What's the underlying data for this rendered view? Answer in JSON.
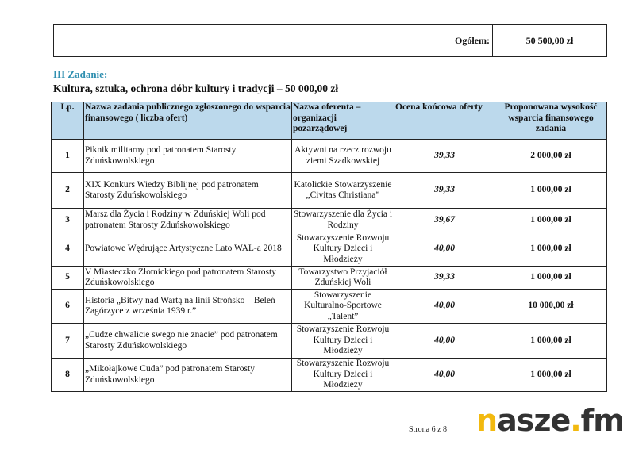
{
  "summary": {
    "label": "Ogółem:",
    "value": "50 500,00 zł"
  },
  "section": {
    "heading": "III Zadanie:",
    "subtitle": "Kultura, sztuka, ochrona dóbr kultury i tradycji – 50 000,00 zł"
  },
  "table": {
    "headers": [
      "Lp.",
      "Nazwa zadania publicznego zgłoszonego do wsparcia finansowego ( liczba ofert)",
      "Nazwa oferenta – organizacji pozarządowej",
      "Ocena końcowa oferty",
      "Proponowana wysokość wsparcia finansowego zadania"
    ],
    "rows": [
      {
        "lp": "1",
        "name": "Piknik militarny pod patronatem Starosty Zduńskowolskiego",
        "org": "Aktywni na rzecz rozwoju ziemi Szadkowskiej",
        "score": "39,33",
        "amount": "2 000,00 zł"
      },
      {
        "lp": "2",
        "name": "XIX Konkurs Wiedzy Biblijnej pod patronatem Starosty Zduńskowolskiego",
        "org": "Katolickie Stowarzyszenie „Civitas Christiana”",
        "score": "39,33",
        "amount": "1 000,00 zł"
      },
      {
        "lp": "3",
        "name": "Marsz dla Życia i Rodziny w Zduńskiej Woli pod patronatem Starosty Zduńskowolskiego",
        "org": "Stowarzyszenie dla Życia i Rodziny",
        "score": "39,67",
        "amount": "1 000,00 zł"
      },
      {
        "lp": "4",
        "name": "Powiatowe Wędrujące Artystyczne Lato WAL-a 2018",
        "org": "Stowarzyszenie Rozwoju Kultury Dzieci i Młodzieży",
        "score": "40,00",
        "amount": "1 000,00 zł"
      },
      {
        "lp": "5",
        "name": "V Miasteczko Złotnickiego pod patronatem Starosty Zduńskowolskiego",
        "org": "Towarzystwo Przyjaciół Zduńskiej Woli",
        "score": "39,33",
        "amount": "1 000,00 zł"
      },
      {
        "lp": "6",
        "name": "Historia „Bitwy nad Wartą na linii Strońsko – Beleń Zagórzyce z września 1939 r.”",
        "org": "Stowarzyszenie Kulturalno-Sportowe „Talent”",
        "score": "40,00",
        "amount": "10 000,00 zł"
      },
      {
        "lp": "7",
        "name": "„Cudze chwalicie swego nie znacie” pod patronatem Starosty Zduńskowolskiego",
        "org": "Stowarzyszenie Rozwoju Kultury Dzieci i Młodzieży",
        "score": "40,00",
        "amount": "1 000,00 zł"
      },
      {
        "lp": "8",
        "name": "„Mikołajkowe Cuda” pod patronatem Starosty Zduńskowolskiego",
        "org": "Stowarzyszenie Rozwoju Kultury Dzieci i Młodzieży",
        "score": "40,00",
        "amount": "1 000,00 zł"
      }
    ]
  },
  "footer": {
    "page": "Strona 6 z 8"
  },
  "watermark": {
    "text": "nasze.fm",
    "colors": {
      "accent": "#f2b90f",
      "text": "#333333"
    }
  },
  "colors": {
    "header_bg": "#bcd9ec",
    "heading": "#2f8fb0"
  }
}
